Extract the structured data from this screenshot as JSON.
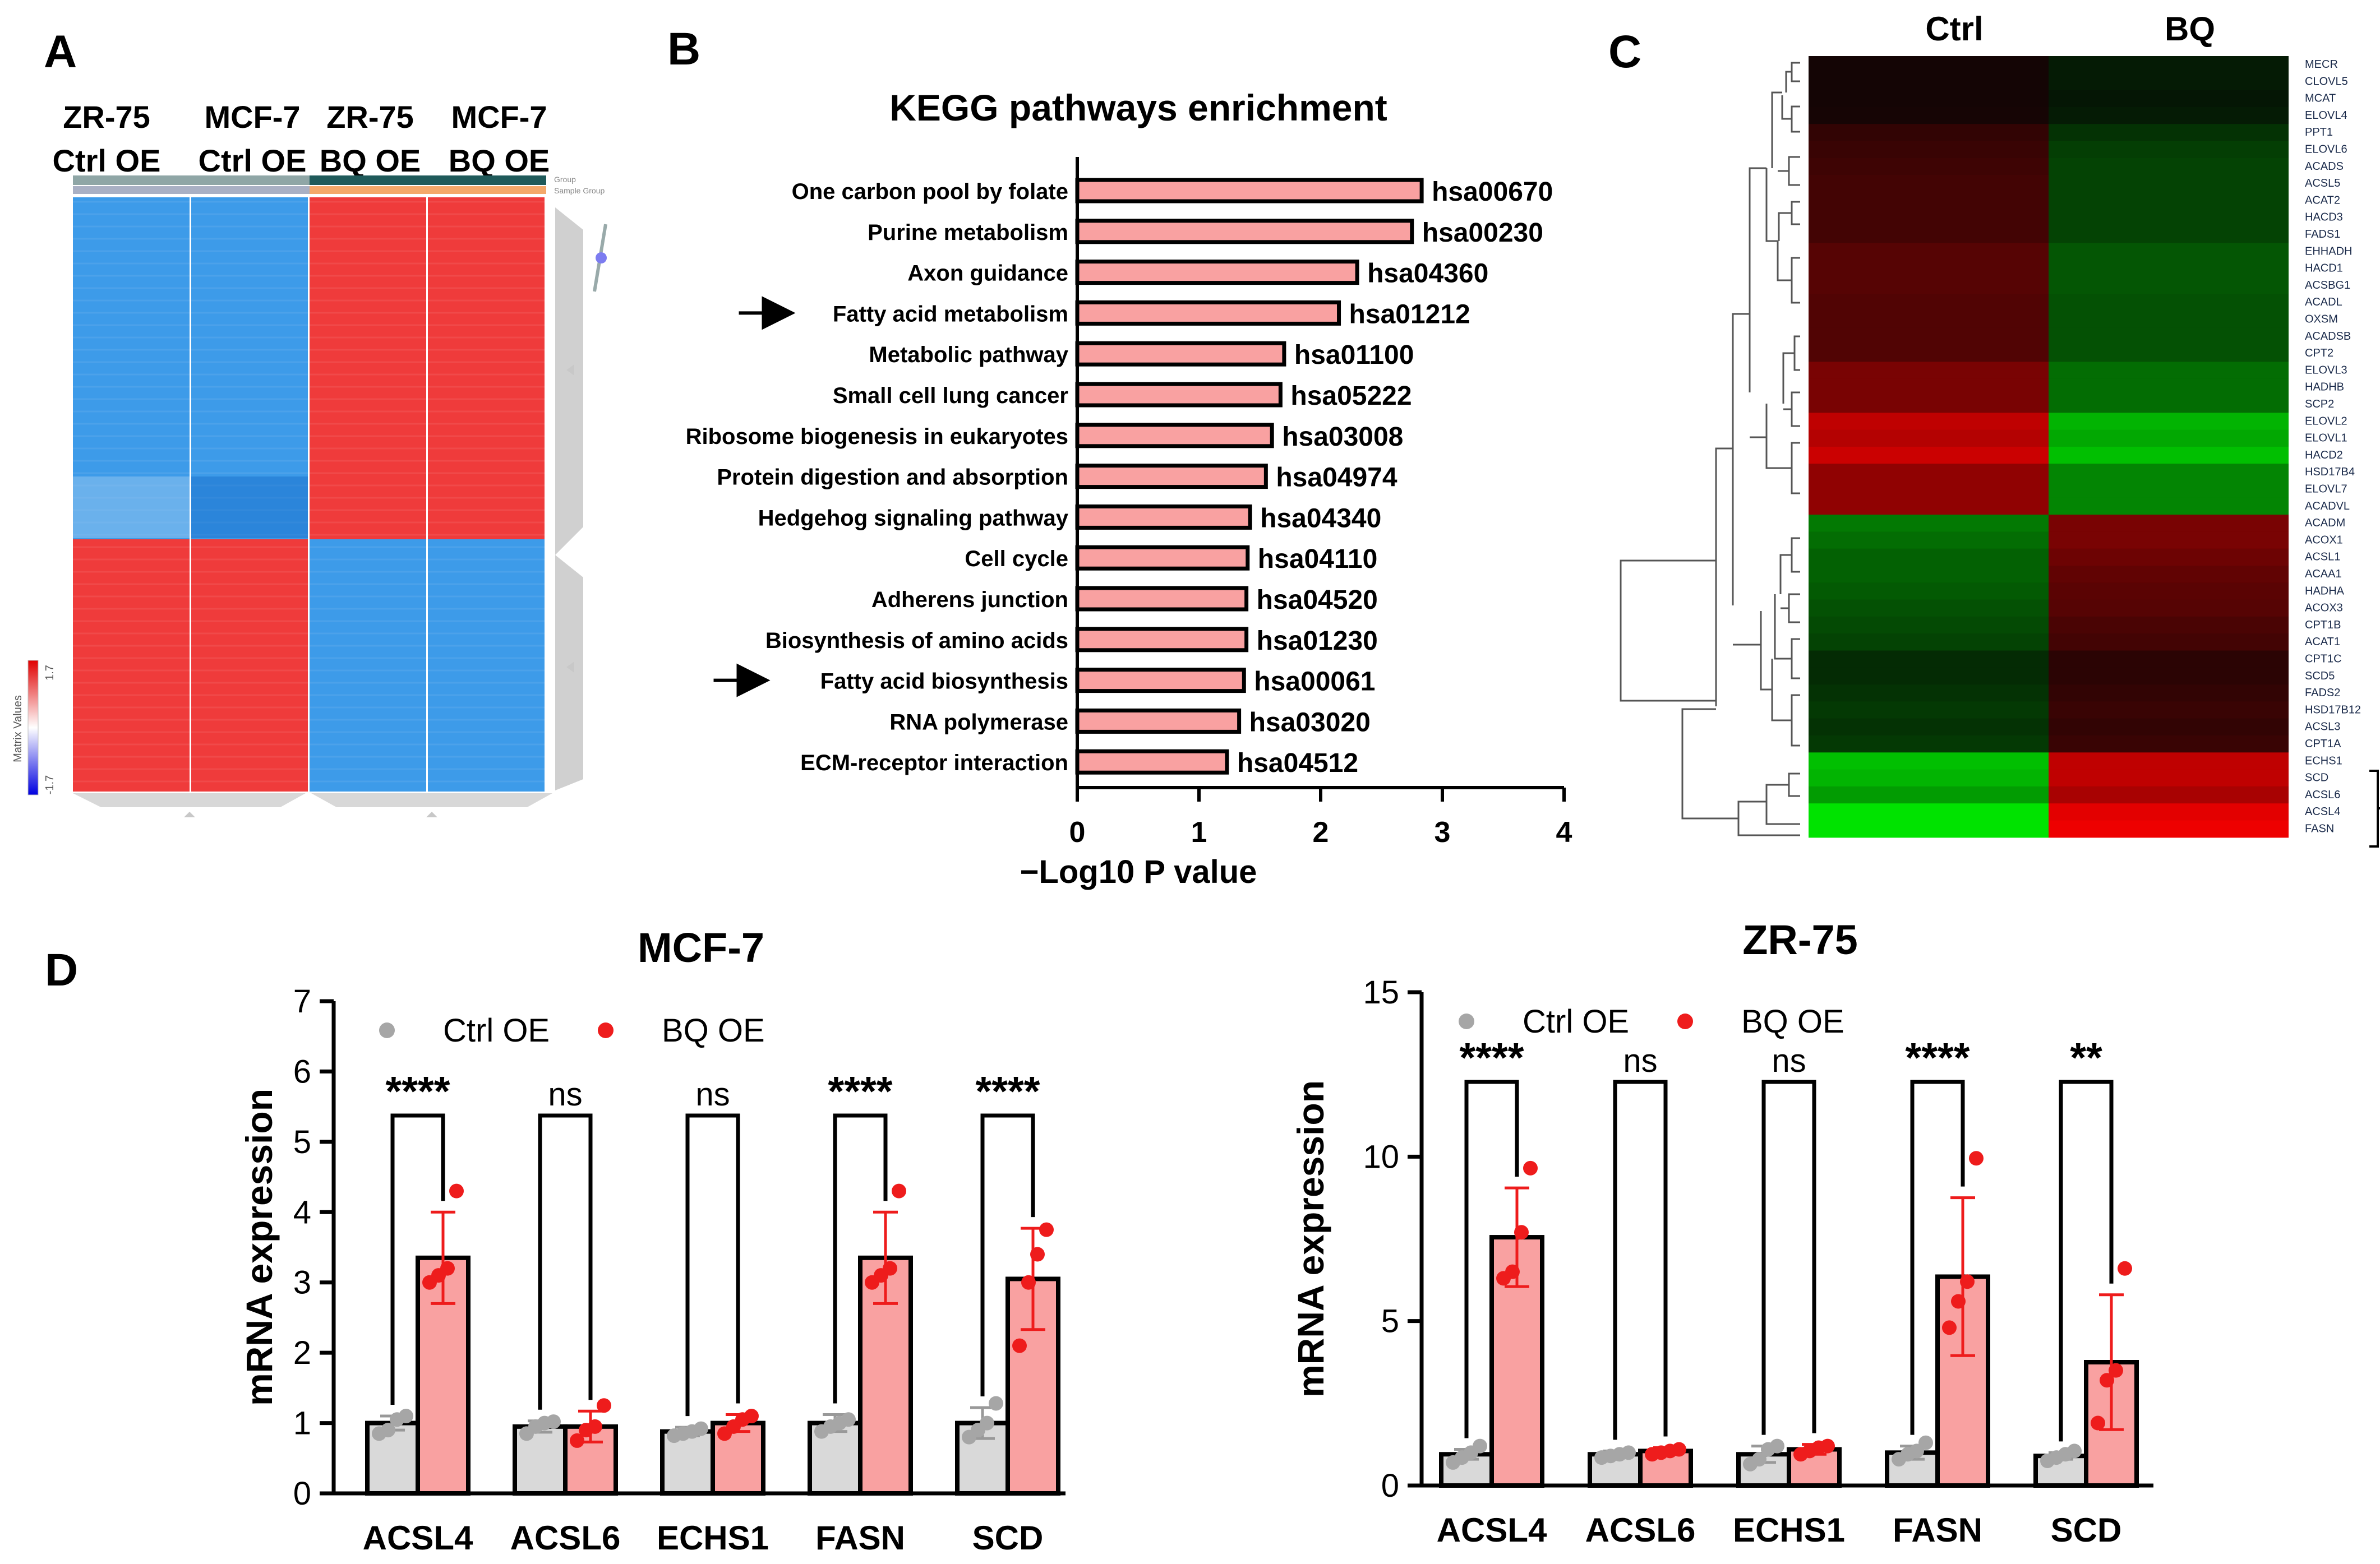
{
  "panel_labels": {
    "a": "A",
    "b": "B",
    "c": "C",
    "d": "D"
  },
  "colors": {
    "heat_red": "#ef3b3b",
    "heat_blue": "#3d9be9",
    "bar_pink": "#f9a1a1",
    "bar_grey": "#d9d9d9",
    "dot_red": "#ee1c1c",
    "dot_grey": "#a6a6a6",
    "group_ctrl": "#8fa6a6",
    "group_bq": "#1f5a5a",
    "sample_ctrl": "#a9b0c4",
    "sample_bq": "#f4a86a"
  },
  "chart_data": [
    {
      "id": "A",
      "type": "heatmap",
      "columns": [
        "ZR-75 Ctrl OE",
        "MCF-7 Ctrl OE",
        "ZR-75 BQ OE",
        "MCF-7 BQ OE"
      ],
      "column_label_lines": [
        [
          "ZR-75",
          "Ctrl OE"
        ],
        [
          "MCF-7",
          "Ctrl OE"
        ],
        [
          "ZR-75",
          "BQ OE"
        ],
        [
          "MCF-7",
          "BQ OE"
        ]
      ],
      "row_blocks": [
        {
          "name": "upper cluster",
          "values": [
            -1.4,
            -1.2,
            1.5,
            1.3
          ]
        },
        {
          "name": "lower cluster",
          "values": [
            1.4,
            1.3,
            -1.4,
            -1.2
          ]
        }
      ],
      "annotation_rows": [
        "Group",
        "Sample Group"
      ],
      "legend": {
        "title": "Matrix Values",
        "max": "1.7",
        "min": "-1.7"
      }
    },
    {
      "id": "B",
      "type": "bar",
      "orientation": "horizontal",
      "title": "KEGG pathways enrichment",
      "xlabel": "−Log10 P value",
      "xlim": [
        0,
        4
      ],
      "xticks": [
        "0",
        "1",
        "2",
        "3",
        "4"
      ],
      "categories": [
        "One carbon pool by folate",
        "Purine metabolism",
        "Axon guidance",
        "Fatty acid metabolism",
        "Metabolic pathway",
        "Small cell lung cancer",
        "Ribosome biogenesis in eukaryotes",
        "Protein digestion and absorption",
        "Hedgehog signaling pathway",
        "Cell cycle",
        "Adherens junction",
        "Biosynthesis of amino acids",
        "Fatty acid biosynthesis",
        "RNA polymerase",
        "ECM-receptor interaction"
      ],
      "values": [
        2.83,
        2.75,
        2.3,
        2.15,
        1.7,
        1.67,
        1.6,
        1.55,
        1.42,
        1.4,
        1.39,
        1.39,
        1.37,
        1.33,
        1.23
      ],
      "ids": [
        "hsa00670",
        "hsa00230",
        "hsa04360",
        "hsa01212",
        "hsa01100",
        "hsa05222",
        "hsa03008",
        "hsa04974",
        "hsa04340",
        "hsa04110",
        "hsa04520",
        "hsa01230",
        "hsa00061",
        "hsa03020",
        "hsa04512"
      ],
      "arrows": [
        "Fatty acid metabolism",
        "Fatty acid biosynthesis"
      ]
    },
    {
      "id": "C",
      "type": "heatmap",
      "columns": [
        "Ctrl",
        "BQ"
      ],
      "genes": [
        "MECR",
        "CLOVL5",
        "MCAT",
        "ELOVL4",
        "PPT1",
        "ELOVL6",
        "ACADS",
        "ACSL5",
        "ACAT2",
        "HACD3",
        "FADS1",
        "EHHADH",
        "HACD1",
        "ACSBG1",
        "ACADL",
        "OXSM",
        "ACADSB",
        "CPT2",
        "ELOVL3",
        "HADHB",
        "SCP2",
        "ELOVL2",
        "ELOVL1",
        "HACD2",
        "HSD17B4",
        "ELOVL7",
        "ACADVL",
        "ACADM",
        "ACOX1",
        "ACSL1",
        "ACAA1",
        "HADHA",
        "ACOX3",
        "CPT1B",
        "ACAT1",
        "CPT1C",
        "SCD5",
        "FADS2",
        "HSD17B12",
        "ACSL3",
        "CPT1A",
        "ECHS1",
        "SCD",
        "ACSL6",
        "ACSL4",
        "FASN"
      ],
      "ctrl_values": [
        0.02,
        0.02,
        0.02,
        0.03,
        0.15,
        0.18,
        0.2,
        0.22,
        0.22,
        0.22,
        0.22,
        0.3,
        0.3,
        0.3,
        0.28,
        0.28,
        0.28,
        0.28,
        0.45,
        0.45,
        0.45,
        0.75,
        0.7,
        0.8,
        0.55,
        0.55,
        0.55,
        -0.45,
        -0.4,
        -0.35,
        -0.35,
        -0.32,
        -0.28,
        -0.25,
        -0.22,
        -0.12,
        -0.12,
        -0.15,
        -0.18,
        -0.15,
        -0.18,
        -0.75,
        -0.7,
        -0.6,
        -0.9,
        -0.9
      ],
      "bq_values": [
        -0.05,
        -0.05,
        -0.03,
        -0.05,
        -0.15,
        -0.2,
        -0.22,
        -0.22,
        -0.22,
        -0.22,
        -0.22,
        -0.3,
        -0.3,
        -0.3,
        -0.28,
        -0.28,
        -0.28,
        -0.28,
        -0.4,
        -0.4,
        -0.4,
        -0.7,
        -0.65,
        -0.75,
        -0.5,
        -0.5,
        -0.5,
        0.45,
        0.45,
        0.4,
        0.35,
        0.32,
        0.3,
        0.25,
        0.22,
        0.12,
        0.12,
        0.15,
        0.18,
        0.15,
        0.18,
        0.75,
        0.75,
        0.65,
        0.9,
        0.95
      ]
    },
    {
      "id": "D1",
      "type": "bar",
      "title": "MCF-7",
      "ylabel": "mRNA expression",
      "ylim": [
        0,
        7
      ],
      "yticks": [
        "0",
        "1",
        "2",
        "3",
        "4",
        "5",
        "6",
        "7"
      ],
      "categories": [
        "ACSL4",
        "ACSL6",
        "ECHS1",
        "FASN",
        "SCD"
      ],
      "legend": [
        "Ctrl OE",
        "BQ OE"
      ],
      "series": [
        {
          "name": "Ctrl OE",
          "values": [
            1.0,
            0.95,
            0.88,
            1.0,
            1.0
          ],
          "errors": [
            0.1,
            0.08,
            0.06,
            0.12,
            0.22
          ],
          "points": [
            [
              0.85,
              0.9,
              1.05,
              1.1
            ],
            [
              0.85,
              0.95,
              1.0,
              1.02
            ],
            [
              0.82,
              0.85,
              0.88,
              0.92
            ],
            [
              0.88,
              0.95,
              1.0,
              1.05
            ],
            [
              0.8,
              0.9,
              1.0,
              1.28
            ]
          ]
        },
        {
          "name": "BQ OE",
          "values": [
            3.35,
            0.95,
            1.0,
            3.35,
            3.05
          ],
          "errors": [
            0.65,
            0.22,
            0.12,
            0.65,
            0.72
          ],
          "points": [
            [
              3.0,
              3.1,
              3.2,
              4.3
            ],
            [
              0.75,
              0.9,
              0.95,
              1.25
            ],
            [
              0.85,
              0.95,
              1.05,
              1.1
            ],
            [
              3.0,
              3.1,
              3.2,
              4.3
            ],
            [
              2.1,
              3.0,
              3.4,
              3.75
            ]
          ]
        }
      ],
      "significance": [
        "****",
        "ns",
        "ns",
        "****",
        "****"
      ]
    },
    {
      "id": "D2",
      "type": "bar",
      "title": "ZR-75",
      "ylabel": "mRNA expression",
      "ylim": [
        0,
        15
      ],
      "yticks": [
        "0",
        "5",
        "10",
        "15"
      ],
      "categories": [
        "ACSL4",
        "ACSL6",
        "ECHS1",
        "FASN",
        "SCD"
      ],
      "legend": [
        "Ctrl OE",
        "BQ OE"
      ],
      "series": [
        {
          "name": "Ctrl OE",
          "values": [
            0.95,
            0.95,
            0.95,
            1.0,
            0.9
          ],
          "errors": [
            0.15,
            0.1,
            0.25,
            0.2,
            0.1
          ],
          "points": [
            [
              0.7,
              0.85,
              1.0,
              1.2
            ],
            [
              0.85,
              0.9,
              0.95,
              1.0
            ],
            [
              0.65,
              0.8,
              1.1,
              1.2
            ],
            [
              0.8,
              0.95,
              1.05,
              1.3
            ],
            [
              0.75,
              0.85,
              0.95,
              1.05
            ]
          ]
        },
        {
          "name": "BQ OE",
          "values": [
            7.55,
            1.05,
            1.1,
            6.35,
            3.75
          ],
          "errors": [
            1.5,
            0.1,
            0.15,
            2.4,
            2.05
          ],
          "points": [
            [
              6.3,
              6.5,
              7.7,
              9.65
            ],
            [
              0.95,
              1.0,
              1.05,
              1.1
            ],
            [
              0.95,
              1.05,
              1.15,
              1.2
            ],
            [
              4.8,
              5.6,
              6.2,
              9.95
            ],
            [
              1.9,
              3.2,
              3.5,
              6.6
            ]
          ]
        }
      ],
      "significance": [
        "****",
        "ns",
        "ns",
        "****",
        "**"
      ]
    }
  ]
}
